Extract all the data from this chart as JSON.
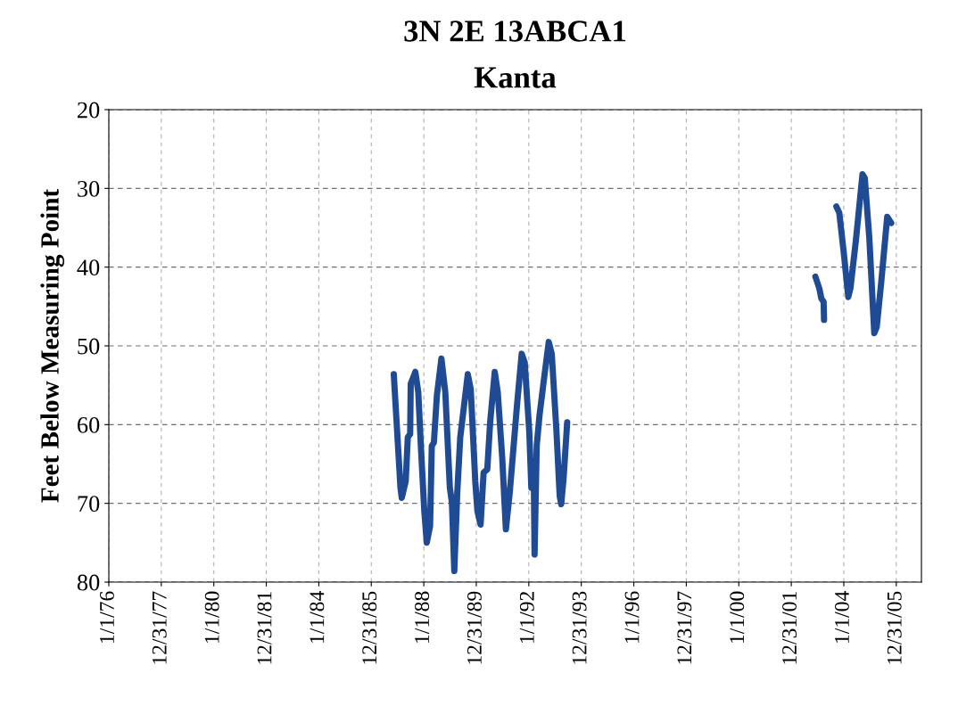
{
  "chart_data": {
    "type": "line",
    "title": "3N 2E 13ABCA1",
    "subtitle": "Kanta",
    "ylabel": "Feet Below Measuring Point",
    "x": [
      "1986-11-09",
      "1987-02-10",
      "1987-02-28",
      "1987-04-24",
      "1987-05-23",
      "1987-06-25",
      "1987-07-03",
      "1987-09-05",
      "1987-10-16",
      "1987-11-27",
      "1988-01-08",
      "1988-02-11",
      "1988-03-28",
      "1988-04-21",
      "1988-05-20",
      "1988-07-01",
      "1988-09-02",
      "1988-10-26",
      "1988-12-28",
      "1989-01-26",
      "1989-02-28",
      "1989-04-10",
      "1989-05-22",
      "1989-09-04",
      "1989-10-15",
      "1989-12-17",
      "1990-01-16",
      "1990-03-01",
      "1990-04-12",
      "1990-06-02",
      "1990-07-12",
      "1990-09-14",
      "1990-10-26",
      "1990-12-27",
      "1991-02-16",
      "1991-04-10",
      "1991-07-22",
      "1991-09-24",
      "1991-11-05",
      "1992-01-07",
      "1992-02-05",
      "1992-03-08",
      "1992-03-21",
      "1992-04-20",
      "1992-05-28",
      "1992-08-02",
      "1992-10-04",
      "1992-11-15",
      "1993-01-17",
      "1993-03-06",
      "1993-03-27",
      "1993-04-28",
      "1993-06-18",
      "1998-01-01",
      "2002-12-01",
      "2003-01-25",
      "2003-02-23",
      "2003-03-26",
      "2003-04-01",
      "2003-06-01",
      "2003-09-19",
      "2003-10-30",
      "2004-01-01",
      "2004-03-03",
      "2004-04-02",
      "2004-06-16",
      "2004-09-17",
      "2004-10-19",
      "2004-12-21",
      "2005-02-28",
      "2005-04-03",
      "2005-06-05",
      "2005-08-27",
      "2005-10-21"
    ],
    "series": [
      {
        "color": "#1f4a94",
        "values": [
          53.6,
          68.0,
          69.3,
          67.2,
          61.6,
          61.2,
          54.8,
          53.3,
          55.9,
          63.8,
          71.0,
          75.0,
          72.9,
          62.7,
          62.3,
          56.3,
          51.6,
          55.9,
          68.0,
          69.9,
          78.6,
          68.7,
          61.6,
          53.6,
          55.5,
          67.2,
          71.0,
          72.7,
          66.1,
          65.7,
          59.7,
          53.3,
          55.9,
          64.2,
          73.3,
          68.7,
          57.4,
          51.0,
          52.1,
          60.8,
          68.0,
          64.6,
          76.5,
          62.7,
          58.9,
          54.0,
          49.5,
          51.0,
          60.4,
          69.1,
          70.1,
          66.9,
          59.7,
          null,
          41.2,
          42.7,
          44.0,
          44.4,
          46.7,
          null,
          32.3,
          33.1,
          38.2,
          43.8,
          42.7,
          36.7,
          28.2,
          28.7,
          36.3,
          48.4,
          47.6,
          41.9,
          33.6,
          34.4
        ]
      }
    ],
    "xlim": [
      "1976-01-01",
      "2006-12-16"
    ],
    "xticks": [
      {
        "value": "1976-01-01",
        "label": "1/1/76"
      },
      {
        "value": "1977-12-31",
        "label": "12/31/77"
      },
      {
        "value": "1980-01-01",
        "label": "1/1/80"
      },
      {
        "value": "1981-12-31",
        "label": "12/31/81"
      },
      {
        "value": "1984-01-01",
        "label": "1/1/84"
      },
      {
        "value": "1985-12-31",
        "label": "12/31/85"
      },
      {
        "value": "1988-01-01",
        "label": "1/1/88"
      },
      {
        "value": "1989-12-31",
        "label": "12/31/89"
      },
      {
        "value": "1992-01-01",
        "label": "1/1/92"
      },
      {
        "value": "1993-12-31",
        "label": "12/31/93"
      },
      {
        "value": "1996-01-01",
        "label": "1/1/96"
      },
      {
        "value": "1997-12-31",
        "label": "12/31/97"
      },
      {
        "value": "2000-01-01",
        "label": "1/1/00"
      },
      {
        "value": "2001-12-31",
        "label": "12/31/01"
      },
      {
        "value": "2004-01-01",
        "label": "1/1/04"
      },
      {
        "value": "2005-12-31",
        "label": "12/31/05"
      }
    ],
    "ylim": [
      80,
      20
    ],
    "yticks": [
      20,
      30,
      40,
      50,
      60,
      70,
      80
    ],
    "grid": true,
    "line_style": "solid",
    "marker": "none"
  }
}
